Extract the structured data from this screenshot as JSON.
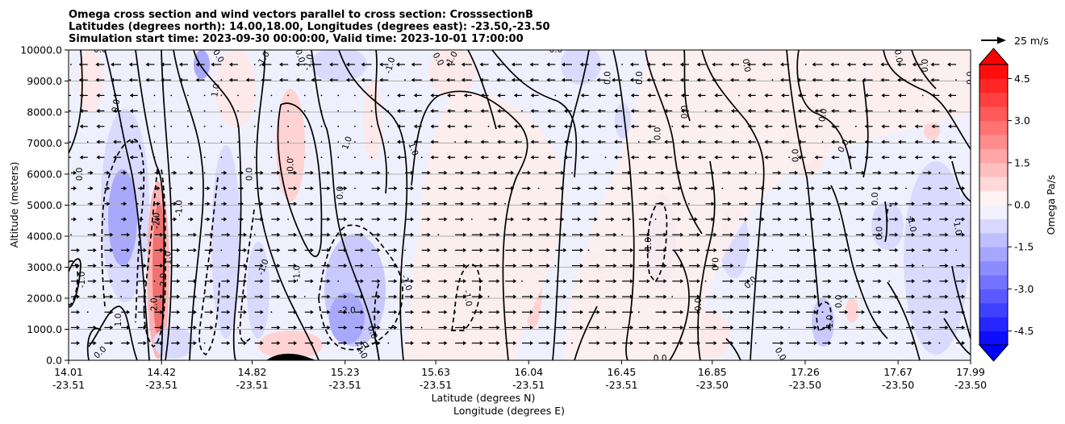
{
  "chart_data": {
    "type": "contourf",
    "title_lines": [
      "Omega cross section and wind vectors parallel to cross section: CrosssectionB",
      "Latitudes (degrees north): 14.00,18.00, Longitudes (degrees east): -23.50,-23.50",
      "Simulation start time: 2023-09-30 00:00:00, Valid time: 2023-10-01 17:00:00"
    ],
    "xlabel_lat": "Latitude (degrees N)",
    "xlabel_lon": "Longitude (degrees E)",
    "ylabel": "Altitude (meters)",
    "x_ticks": [
      {
        "lat": "14.01",
        "lon": "-23.51"
      },
      {
        "lat": "14.42",
        "lon": "-23.51"
      },
      {
        "lat": "14.82",
        "lon": "-23.51"
      },
      {
        "lat": "15.23",
        "lon": "-23.51"
      },
      {
        "lat": "15.63",
        "lon": "-23.51"
      },
      {
        "lat": "16.04",
        "lon": "-23.51"
      },
      {
        "lat": "16.45",
        "lon": "-23.51"
      },
      {
        "lat": "16.85",
        "lon": "-23.50"
      },
      {
        "lat": "17.26",
        "lon": "-23.50"
      },
      {
        "lat": "17.67",
        "lon": "-23.50"
      },
      {
        "lat": "17.99",
        "lon": "-23.50"
      }
    ],
    "x_range": [
      14.01,
      17.99
    ],
    "y_ticks": [
      "0.0",
      "1000.0",
      "2000.0",
      "3000.0",
      "4000.0",
      "5000.0",
      "6000.0",
      "7000.0",
      "8000.0",
      "9000.0",
      "10000.0"
    ],
    "y_range": [
      0,
      10000
    ],
    "grid": "horizontal",
    "colorbar": {
      "label": "Omega Pa/s",
      "ticks": [
        "-4.5",
        "-3.0",
        "-1.5",
        "0.0",
        "1.5",
        "3.0",
        "4.5"
      ],
      "range": [
        -5.0,
        5.0
      ],
      "step": 0.5,
      "cmap": "bwr",
      "extend": "both"
    },
    "quiver_key": "25 m/s",
    "contour_labels": [
      {
        "text": "-2.0",
        "lat": 14.4,
        "alt": 4500,
        "angle": -90
      },
      {
        "text": "-2.0",
        "lat": 15.24,
        "alt": 1600,
        "angle": 0
      },
      {
        "text": "-1.0",
        "lat": 14.07,
        "alt": 2600,
        "angle": -90
      },
      {
        "text": "-1.0",
        "lat": 14.87,
        "alt": 3000,
        "angle": -70
      },
      {
        "text": "-1.0",
        "lat": 15.02,
        "alt": 2800,
        "angle": -90
      },
      {
        "text": "-1.0",
        "lat": 15.5,
        "alt": 2500,
        "angle": 70
      },
      {
        "text": "-1.0",
        "lat": 15.77,
        "alt": 2000,
        "angle": 80
      },
      {
        "text": "-1.0",
        "lat": 16.57,
        "alt": 3700,
        "angle": -90
      },
      {
        "text": "-1.0",
        "lat": 17.37,
        "alt": 1200,
        "angle": -90
      },
      {
        "text": "-1.0",
        "lat": 17.93,
        "alt": 4300,
        "angle": 80
      },
      {
        "text": "-1.0",
        "lat": 17.73,
        "alt": 4400,
        "angle": 80
      },
      {
        "text": "-1.0",
        "lat": 14.87,
        "alt": 9700,
        "angle": -60
      },
      {
        "text": "-1.0",
        "lat": 15.07,
        "alt": 9600,
        "angle": -75
      },
      {
        "text": "-1.0",
        "lat": 15.7,
        "alt": 9700,
        "angle": -60
      },
      {
        "text": "-1.0",
        "lat": 15.43,
        "alt": 9500,
        "angle": -75
      },
      {
        "text": "-1.0",
        "lat": 15.3,
        "alt": 300,
        "angle": 60
      },
      {
        "text": "-1.0",
        "lat": 14.5,
        "alt": 4900,
        "angle": -90
      },
      {
        "text": "0.0",
        "lat": 14.06,
        "alt": 6000,
        "angle": -90
      },
      {
        "text": "0.0",
        "lat": 14.22,
        "alt": 8200,
        "angle": -80
      },
      {
        "text": "0.0",
        "lat": 14.15,
        "alt": 10000,
        "angle": 0
      },
      {
        "text": "0.0",
        "lat": 14.67,
        "alt": 9800,
        "angle": 60
      },
      {
        "text": "0.0",
        "lat": 14.81,
        "alt": 6000,
        "angle": -90
      },
      {
        "text": "0.0",
        "lat": 14.99,
        "alt": 6300,
        "angle": -90
      },
      {
        "text": "0.0",
        "lat": 15.03,
        "alt": 9800,
        "angle": 70
      },
      {
        "text": "0.0",
        "lat": 15.21,
        "alt": 5400,
        "angle": -90
      },
      {
        "text": "0.0",
        "lat": 15.64,
        "alt": 9700,
        "angle": 60
      },
      {
        "text": "0.0",
        "lat": 16.16,
        "alt": 10000,
        "angle": 0
      },
      {
        "text": "0.0",
        "lat": 16.39,
        "alt": 9100,
        "angle": -90
      },
      {
        "text": "0.0",
        "lat": 16.53,
        "alt": 9100,
        "angle": -90
      },
      {
        "text": "0.0",
        "lat": 16.61,
        "alt": 7300,
        "angle": -90
      },
      {
        "text": "0.0",
        "lat": 16.73,
        "alt": 8000,
        "angle": -90
      },
      {
        "text": "0.0",
        "lat": 16.79,
        "alt": 1800,
        "angle": -90
      },
      {
        "text": "0.0",
        "lat": 16.86,
        "alt": 3100,
        "angle": 90
      },
      {
        "text": "0.0",
        "lat": 17.0,
        "alt": 9500,
        "angle": 80
      },
      {
        "text": "0.0",
        "lat": 17.02,
        "alt": 2500,
        "angle": -45
      },
      {
        "text": "0.0",
        "lat": 17.22,
        "alt": 6600,
        "angle": -90
      },
      {
        "text": "0.0",
        "lat": 17.34,
        "alt": 7900,
        "angle": -80
      },
      {
        "text": "0.0",
        "lat": 17.43,
        "alt": 6900,
        "angle": -60
      },
      {
        "text": "0.0",
        "lat": 17.41,
        "alt": 1900,
        "angle": -90
      },
      {
        "text": "0.0",
        "lat": 17.57,
        "alt": 5200,
        "angle": -90
      },
      {
        "text": "0.0",
        "lat": 17.59,
        "alt": 4100,
        "angle": -90
      },
      {
        "text": "0.0",
        "lat": 17.67,
        "alt": 9800,
        "angle": 80
      },
      {
        "text": "0.0",
        "lat": 17.79,
        "alt": 9500,
        "angle": -90
      },
      {
        "text": "0.0",
        "lat": 17.99,
        "alt": 9100,
        "angle": -90
      },
      {
        "text": "0.0",
        "lat": 16.62,
        "alt": 50,
        "angle": 0
      },
      {
        "text": "0.0",
        "lat": 17.15,
        "alt": 200,
        "angle": 60
      },
      {
        "text": "0.0",
        "lat": 14.15,
        "alt": 250,
        "angle": -45
      },
      {
        "text": "0.0",
        "lat": 15.35,
        "alt": 900,
        "angle": 70
      },
      {
        "text": "1.0",
        "lat": 14.23,
        "alt": 1300,
        "angle": -90
      },
      {
        "text": "1.0",
        "lat": 14.45,
        "alt": 3300,
        "angle": -90
      },
      {
        "text": "1.0",
        "lat": 14.66,
        "alt": 8700,
        "angle": -80
      },
      {
        "text": "1.0",
        "lat": 15.24,
        "alt": 7000,
        "angle": -70
      },
      {
        "text": "1.0",
        "lat": 15.31,
        "alt": 400,
        "angle": -45
      },
      {
        "text": "1.0",
        "lat": 15.53,
        "alt": 6800,
        "angle": 70
      },
      {
        "text": "2.0",
        "lat": 14.43,
        "alt": 2600,
        "angle": -90
      },
      {
        "text": "2.0",
        "lat": 14.39,
        "alt": 1800,
        "angle": -90
      }
    ]
  }
}
